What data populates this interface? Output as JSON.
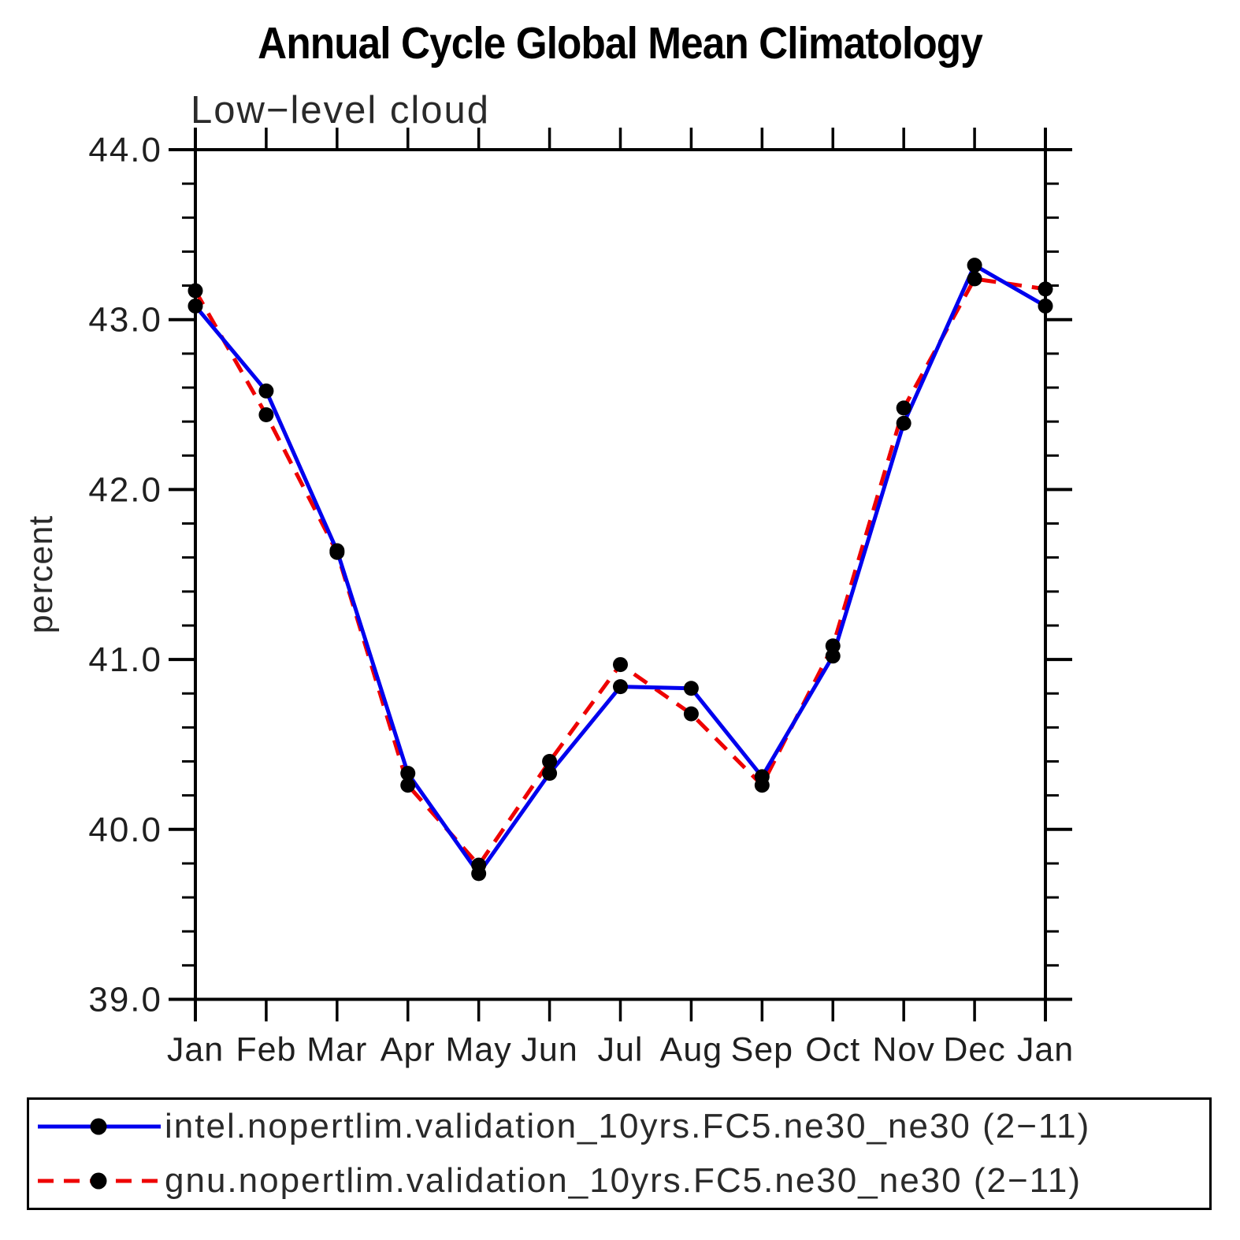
{
  "title": "Annual Cycle Global Mean Climatology",
  "subtitle": "Low−level cloud",
  "y_axis": {
    "label": "percent",
    "min": 39.0,
    "max": 44.0,
    "major_step": 1.0,
    "minor_step": 0.2
  },
  "x_axis": {
    "tick_labels": [
      "Jan",
      "Feb",
      "Mar",
      "Apr",
      "May",
      "Jun",
      "Jul",
      "Aug",
      "Sep",
      "Oct",
      "Nov",
      "Dec",
      "Jan"
    ]
  },
  "legend": {
    "entries": [
      {
        "label": "intel.nopertlim.validation_10yrs.FC5.ne30_ne30 (2−11)",
        "color": "#0000ee",
        "style": "solid",
        "marker": "circle",
        "marker_color": "#000000"
      },
      {
        "label": "gnu.nopertlim.validation_10yrs.FC5.ne30_ne30 (2−11)",
        "color": "#ee0000",
        "style": "dashed",
        "marker": "circle",
        "marker_color": "#000000"
      }
    ]
  },
  "chart_data": {
    "type": "line",
    "title": "Annual Cycle Global Mean Climatology",
    "subtitle": "Low−level cloud",
    "categories": [
      "Jan",
      "Feb",
      "Mar",
      "Apr",
      "May",
      "Jun",
      "Jul",
      "Aug",
      "Sep",
      "Oct",
      "Nov",
      "Dec",
      "Jan"
    ],
    "series": [
      {
        "name": "intel.nopertlim.validation_10yrs.FC5.ne30_ne30 (2−11)",
        "color": "#0000ee",
        "line_style": "solid",
        "marker": "circle",
        "marker_color": "#000000",
        "values": [
          43.08,
          42.58,
          41.64,
          40.33,
          39.74,
          40.33,
          40.84,
          40.83,
          40.31,
          41.02,
          42.39,
          43.32,
          43.08
        ]
      },
      {
        "name": "gnu.nopertlim.validation_10yrs.FC5.ne30_ne30 (2−11)",
        "color": "#ee0000",
        "line_style": "dashed",
        "marker": "circle",
        "marker_color": "#000000",
        "values": [
          43.17,
          42.44,
          41.63,
          40.26,
          39.79,
          40.4,
          40.97,
          40.68,
          40.26,
          41.08,
          42.48,
          43.24,
          43.18
        ]
      }
    ],
    "xlabel": "",
    "ylabel": "percent",
    "ylim": [
      39.0,
      44.0
    ],
    "y_major_step": 1.0,
    "y_minor_step": 0.2,
    "y_tick_labels": [
      "39.0",
      "40.0",
      "41.0",
      "42.0",
      "43.0",
      "44.0"
    ],
    "grid": false,
    "legend_position": "bottom"
  }
}
